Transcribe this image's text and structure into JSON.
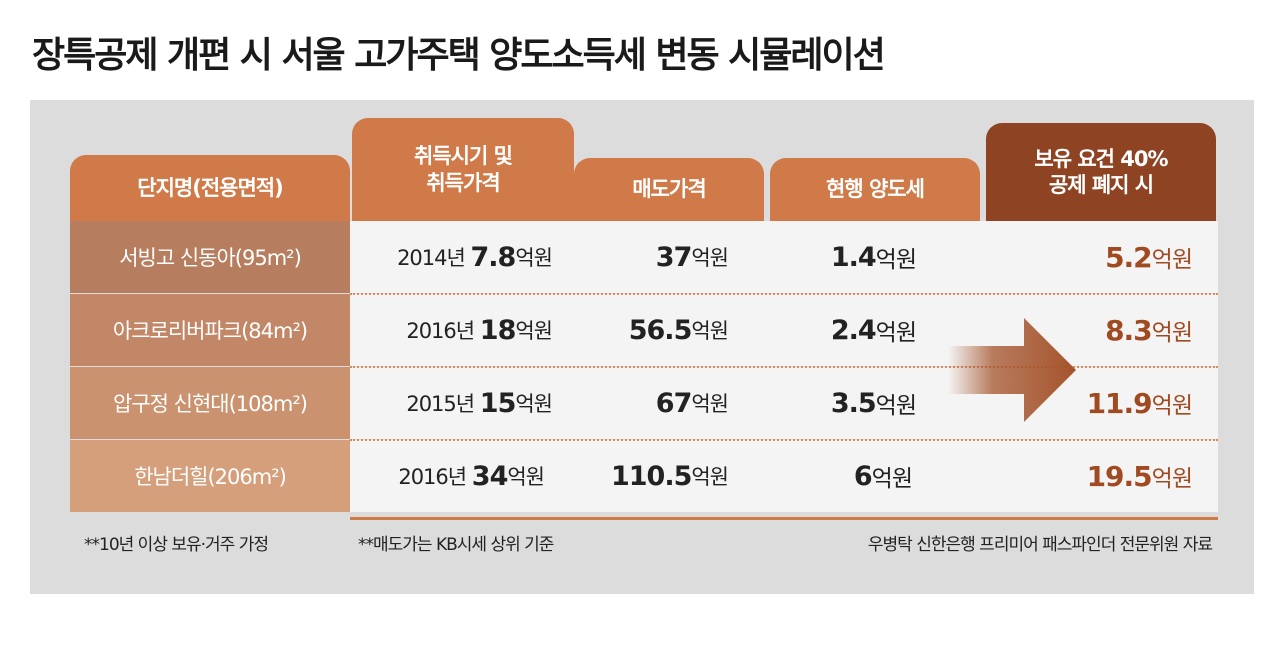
{
  "title": "장특공제 개편 시 서울 고가주택 양도소득세 변동 시뮬레이션",
  "headers": {
    "complex": "단지명(전용면적)",
    "acquisition_line1": "취득시기 및",
    "acquisition_line2": "취득가격",
    "sale": "매도가격",
    "current_tax": "현행 양도세",
    "after_line1": "보유 요건 40%",
    "after_line2": "공제 폐지 시"
  },
  "unit": "억원",
  "chart_data": {
    "type": "table",
    "title": "장특공제 개편 시 서울 고가주택 양도소득세 변동 시뮬레이션",
    "columns": [
      "단지명(전용면적)",
      "취득시기 및 취득가격",
      "매도가격",
      "현행 양도세",
      "보유 요건 40% 공제 폐지 시"
    ],
    "rows": [
      {
        "name": "서빙고 신동아(95m²)",
        "acq_year": "2014년",
        "acq_price": "7.8",
        "sale": "37",
        "current": "1.4",
        "after": "5.2"
      },
      {
        "name": "아크로리버파크(84m²)",
        "acq_year": "2016년",
        "acq_price": "18",
        "sale": "56.5",
        "current": "2.4",
        "after": "8.3"
      },
      {
        "name": "압구정 신현대(108m²)",
        "acq_year": "2015년",
        "acq_price": "15",
        "sale": "67",
        "current": "3.5",
        "after": "11.9"
      },
      {
        "name": "한남더힐(206m²)",
        "acq_year": "2016년",
        "acq_price": "34",
        "sale": "110.5",
        "current": "6",
        "after": "19.5"
      }
    ]
  },
  "footnotes": {
    "note1": "**10년 이상 보유·거주 가정",
    "note2": "**매도가는 KB시세 상위 기준",
    "source": "우병탁 신한은행 프리미어 패스파인더 전문위원 자료"
  },
  "colors": {
    "header": "#cf7a48",
    "header_final": "#8e4423",
    "result": "#a04a22"
  }
}
